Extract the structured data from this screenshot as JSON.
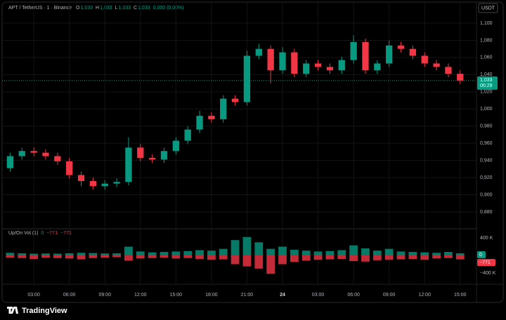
{
  "chart_data": {
    "type": "candlestick",
    "title": "APT / TetherUS · 1 · Binance",
    "ohlc_legend": [
      {
        "label": "O",
        "value": "1,033"
      },
      {
        "label": "H",
        "value": "1,033"
      },
      {
        "label": "L",
        "value": "1,033"
      },
      {
        "label": "C",
        "value": "1,033"
      }
    ],
    "change": "0,000 (0,00%)",
    "currency": "USDT",
    "up_color": "#089981",
    "down_color": "#f23645",
    "grid": true,
    "x": [
      1,
      2,
      3,
      4,
      5,
      6,
      7,
      8,
      9,
      10,
      11,
      12,
      13,
      14,
      15,
      16,
      17,
      18,
      19,
      20,
      21,
      22,
      23,
      24,
      25,
      26,
      27,
      28,
      29,
      30,
      31,
      32,
      33,
      34,
      35,
      36,
      37,
      38,
      39
    ],
    "open": [
      0.931,
      0.945,
      0.951,
      0.949,
      0.945,
      0.939,
      0.923,
      0.916,
      0.91,
      0.913,
      0.915,
      0.955,
      0.943,
      0.941,
      0.951,
      0.963,
      0.976,
      0.992,
      0.988,
      1.012,
      1.008,
      1.062,
      1.07,
      1.045,
      1.066,
      1.041,
      1.053,
      1.049,
      1.045,
      1.057,
      1.078,
      1.045,
      1.053,
      1.074,
      1.07,
      1.062,
      1.053,
      1.049,
      1.041
    ],
    "high": [
      0.949,
      0.955,
      0.955,
      0.953,
      0.949,
      0.943,
      0.927,
      0.92,
      0.917,
      0.919,
      0.967,
      0.959,
      0.947,
      0.955,
      0.967,
      0.98,
      0.998,
      0.996,
      1.016,
      1.016,
      1.068,
      1.076,
      1.074,
      1.072,
      1.07,
      1.057,
      1.057,
      1.053,
      1.061,
      1.086,
      1.082,
      1.057,
      1.08,
      1.078,
      1.074,
      1.066,
      1.057,
      1.053,
      1.045
    ],
    "low": [
      0.927,
      0.941,
      0.945,
      0.941,
      0.935,
      0.919,
      0.91,
      0.906,
      0.906,
      0.909,
      0.911,
      0.939,
      0.937,
      0.937,
      0.947,
      0.959,
      0.972,
      0.984,
      0.984,
      1.004,
      1.004,
      1.058,
      1.03,
      1.041,
      1.037,
      1.037,
      1.045,
      1.041,
      1.041,
      1.053,
      1.041,
      1.041,
      1.049,
      1.066,
      1.058,
      1.049,
      1.045,
      1.037,
      1.029
    ],
    "close": [
      0.945,
      0.951,
      0.949,
      0.945,
      0.939,
      0.923,
      0.916,
      0.91,
      0.913,
      0.915,
      0.955,
      0.943,
      0.941,
      0.951,
      0.963,
      0.976,
      0.992,
      0.988,
      1.012,
      1.008,
      1.062,
      1.07,
      1.045,
      1.066,
      1.041,
      1.053,
      1.049,
      1.045,
      1.057,
      1.078,
      1.045,
      1.053,
      1.074,
      1.07,
      1.062,
      1.053,
      1.049,
      1.041,
      1.033
    ],
    "xlim": [
      0.62,
      40.2
    ],
    "xticks": [
      {
        "value": 3,
        "label": "03:00"
      },
      {
        "value": 6,
        "label": "06:00"
      },
      {
        "value": 9,
        "label": "09:00"
      },
      {
        "value": 12,
        "label": "12:00"
      },
      {
        "value": 15,
        "label": "15:00"
      },
      {
        "value": 18,
        "label": "18:00"
      },
      {
        "value": 21,
        "label": "21:00"
      },
      24,
      {
        "value": 27,
        "label": "03:00"
      },
      {
        "value": 30,
        "label": "06:00"
      },
      {
        "value": 33,
        "label": "09:00"
      },
      {
        "value": 36,
        "label": "12:00"
      },
      {
        "value": 39,
        "label": "15:00"
      }
    ],
    "ylim": [
      0.8612,
      1.1188
    ],
    "yticks": [
      {
        "value": 0.88,
        "label": "0,880"
      },
      {
        "value": 0.9,
        "label": "0,900"
      },
      {
        "value": 0.92,
        "label": "0,920"
      },
      {
        "value": 0.94,
        "label": "0,940"
      },
      {
        "value": 0.96,
        "label": "0,960"
      },
      {
        "value": 0.98,
        "label": "0,980"
      },
      {
        "value": 1.0,
        "label": "1,000"
      },
      {
        "value": 1.02,
        "label": "1,020"
      },
      {
        "value": 1.04,
        "label": "1,040"
      },
      {
        "value": 1.06,
        "label": "1,060"
      },
      {
        "value": 1.08,
        "label": "1,080"
      },
      {
        "value": 1.1,
        "label": "1,100"
      }
    ],
    "last_price": {
      "value": 1.033,
      "label": "1,033"
    },
    "countdown": "00:29",
    "volume": {
      "title": "Up/On Vol (1)",
      "legend_values": [
        "0",
        "−771",
        "−771"
      ],
      "up": [
        60000,
        50000,
        40000,
        45000,
        40000,
        50000,
        60000,
        55000,
        45000,
        50000,
        200000,
        90000,
        70000,
        80000,
        90000,
        100000,
        120000,
        110000,
        150000,
        350000,
        420000,
        300000,
        150000,
        200000,
        130000,
        110000,
        90000,
        100000,
        120000,
        230000,
        160000,
        110000,
        150000,
        90000,
        80000,
        70000,
        60000,
        80000,
        50000
      ],
      "down": [
        -50000,
        -60000,
        -80000,
        -50000,
        -60000,
        -70000,
        -90000,
        -60000,
        -50000,
        -40000,
        -120000,
        -70000,
        -60000,
        -50000,
        -70000,
        -60000,
        -80000,
        -100000,
        -90000,
        -200000,
        -250000,
        -300000,
        -420000,
        -200000,
        -150000,
        -120000,
        -100000,
        -90000,
        -80000,
        -130000,
        -140000,
        -110000,
        -100000,
        -90000,
        -80000,
        -100000,
        -70000,
        -60000,
        -90000
      ],
      "ylim": [
        -576000,
        576000
      ],
      "yticks": [
        {
          "value": 400000,
          "label": "400 K"
        },
        {
          "value": -400000,
          "label": "−400 K"
        }
      ]
    },
    "branding": "TradingView"
  }
}
